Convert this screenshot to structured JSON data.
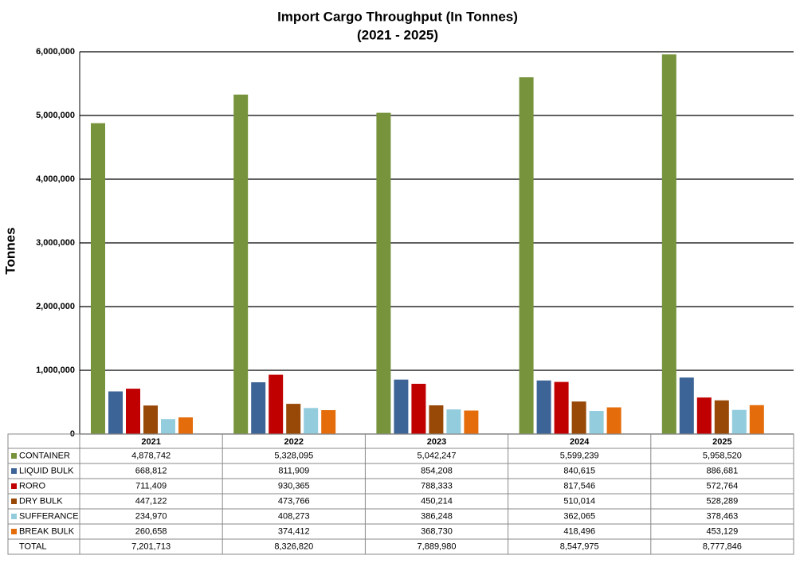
{
  "chart_data": {
    "type": "bar",
    "title": "Import Cargo Throughput (In Tonnes)",
    "subtitle": "(2021 - 2025)",
    "y_label": "Tonnes",
    "categories": [
      "2021",
      "2022",
      "2023",
      "2024",
      "2025"
    ],
    "series": [
      {
        "name": "CONTAINER",
        "color": "#77933c",
        "values": [
          4878742,
          5328095,
          5042247,
          5599239,
          5958520
        ],
        "value_labels": [
          "4,878,742",
          "5,328,095",
          "5,042,247",
          "5,599,239",
          "5,958,520"
        ]
      },
      {
        "name": "LIQUID BULK",
        "color": "#3c6496",
        "values": [
          668812,
          811909,
          854208,
          840615,
          886681
        ],
        "value_labels": [
          "668,812",
          "811,909",
          "854,208",
          "840,615",
          "886,681"
        ]
      },
      {
        "name": "RORO",
        "color": "#c00000",
        "values": [
          711409,
          930365,
          788333,
          817546,
          572764
        ],
        "value_labels": [
          "711,409",
          "930,365",
          "788,333",
          "817,546",
          "572,764"
        ]
      },
      {
        "name": "DRY BULK",
        "color": "#984807",
        "values": [
          447122,
          473766,
          450214,
          510014,
          528289
        ],
        "value_labels": [
          "447,122",
          "473,766",
          "450,214",
          "510,014",
          "528,289"
        ]
      },
      {
        "name": "SUFFERANCE",
        "color": "#93cddd",
        "values": [
          234970,
          408273,
          386248,
          362065,
          378463
        ],
        "value_labels": [
          "234,970",
          "408,273",
          "386,248",
          "362,065",
          "378,463"
        ]
      },
      {
        "name": "BREAK BULK",
        "color": "#e46c0a",
        "values": [
          260658,
          374412,
          368730,
          418496,
          453129
        ],
        "value_labels": [
          "260,658",
          "374,412",
          "368,730",
          "418,496",
          "453,129"
        ]
      }
    ],
    "totals": {
      "name": "TOTAL",
      "values": [
        7201713,
        8326820,
        7889980,
        8547975,
        8777846
      ],
      "value_labels": [
        "7,201,713",
        "8,326,820",
        "7,889,980",
        "8,547,975",
        "8,777,846"
      ]
    },
    "ylim": [
      0,
      6000000
    ],
    "yticks": [
      0,
      {
        "value": 1000000,
        "label": "1,000,000"
      },
      {
        "value": 2000000,
        "label": "2,000,000"
      },
      {
        "value": 3000000,
        "label": "3,000,000"
      },
      {
        "value": 4000000,
        "label": "4,000,000"
      },
      {
        "value": 5000000,
        "label": "5,000,000"
      },
      {
        "value": 6000000,
        "label": "6,000,000"
      }
    ],
    "grid": true
  }
}
